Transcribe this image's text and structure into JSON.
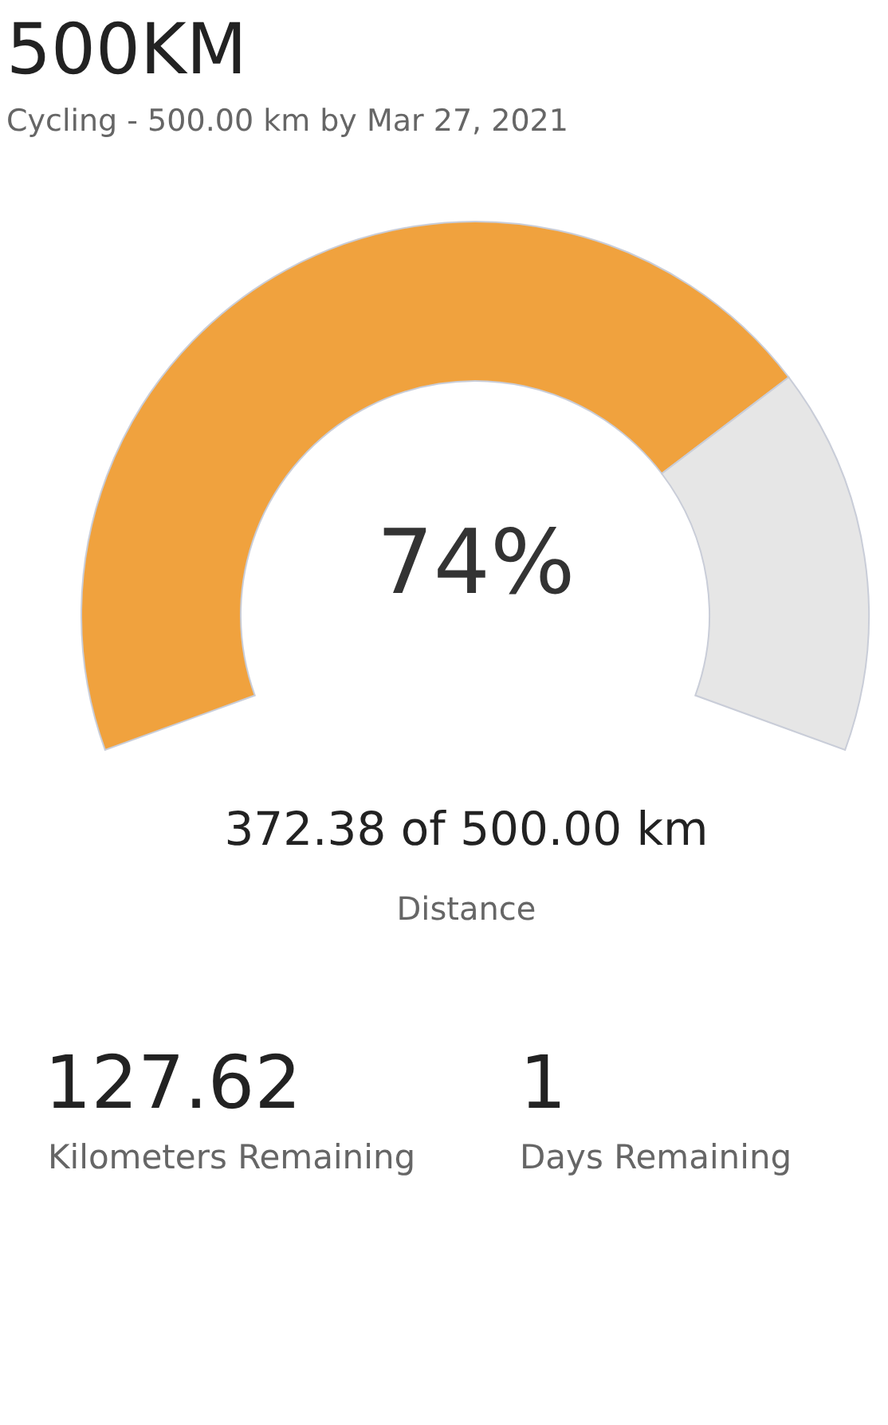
{
  "chart_data": {
    "type": "donut",
    "title": "500KM",
    "subtitle": "Cycling - 500.00 km by Mar 27, 2021",
    "categories": [
      null,
      null
    ],
    "values": [
      74,
      26
    ],
    "colors": [
      "#f0a23e",
      "#e6e6e6"
    ],
    "annotations": [
      "74%",
      "372.38 of 500.00 km",
      "Distance",
      "127.62",
      "Kilometers Remaining",
      "1",
      "Days Remaining"
    ]
  }
}
